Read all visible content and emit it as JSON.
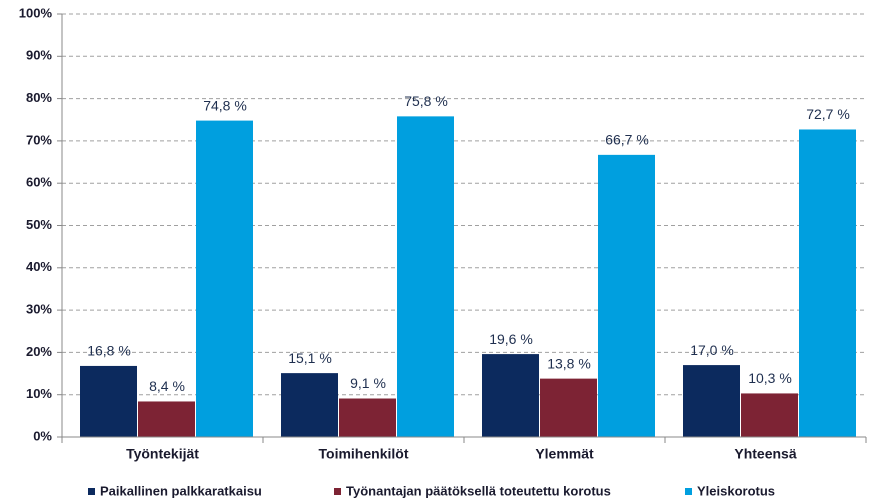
{
  "chart_data": {
    "type": "bar",
    "categories": [
      "Työntekijät",
      "Toimihenkilöt",
      "Ylemmät",
      "Yhteensä"
    ],
    "series": [
      {
        "name": "Paikallinen palkkaratkaisu",
        "color": "#0c2a5e",
        "values": [
          16.8,
          15.1,
          19.6,
          17.0
        ],
        "value_labels": [
          "16,8 %",
          "15,1 %",
          "19,6 %",
          "17,0 %"
        ]
      },
      {
        "name": "Työnantajan päätöksellä toteutettu korotus",
        "color": "#7d2334",
        "values": [
          8.4,
          9.1,
          13.8,
          10.3
        ],
        "value_labels": [
          "8,4 %",
          "9,1 %",
          "13,8 %",
          "10,3 %"
        ]
      },
      {
        "name": "Yleiskorotus",
        "color": "#009fdf",
        "values": [
          74.8,
          75.8,
          66.7,
          72.7
        ],
        "value_labels": [
          "74,8 %",
          "75,8 %",
          "66,7 %",
          "72,7 %"
        ]
      }
    ],
    "ylim": [
      0,
      100
    ],
    "yticks": [
      {
        "value": 0,
        "label": "0%"
      },
      {
        "value": 10,
        "label": "10%"
      },
      {
        "value": 20,
        "label": "20%"
      },
      {
        "value": 30,
        "label": "30%"
      },
      {
        "value": 40,
        "label": "40%"
      },
      {
        "value": 50,
        "label": "50%"
      },
      {
        "value": 60,
        "label": "60%"
      },
      {
        "value": 70,
        "label": "70%"
      },
      {
        "value": 80,
        "label": "80%"
      },
      {
        "value": 90,
        "label": "90%"
      },
      {
        "value": 100,
        "label": "100%"
      }
    ],
    "grid": true,
    "legend": "bottom"
  }
}
